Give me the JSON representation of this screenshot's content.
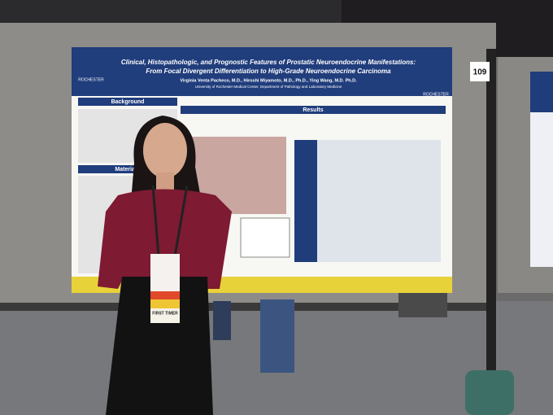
{
  "poster": {
    "title_line1": "Clinical, Histopathologic, and Prognostic Features of Prostatic Neuroendocrine Manifestations:",
    "title_line2": "From Focal Divergent Differentiation to High-Grade Neuroendocrine Carcinoma",
    "authors": "Virginia Venta Pacheco, M.D., Hiroshi Miyamoto, M.D., Ph.D., Ying Wang, M.D. Ph.D.",
    "affiliation": "University of Rochester Medical Center, Department of Pathology and Laboratory Medicine",
    "logo_left": "ROCHESTER",
    "logo_right": "ROCHESTER",
    "sections": [
      "Background",
      "Results",
      "Materials &"
    ]
  },
  "board_number": "109",
  "badge": {
    "ribbon": "FIRST TIMER"
  }
}
